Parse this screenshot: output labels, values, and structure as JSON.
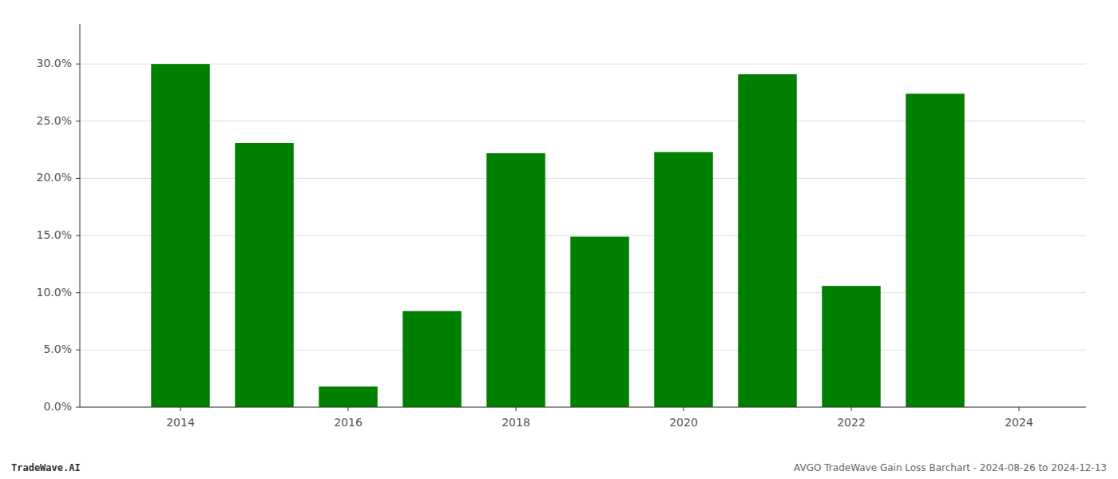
{
  "chart_data": {
    "type": "bar",
    "x": [
      2014,
      2015,
      2016,
      2017,
      2018,
      2019,
      2020,
      2021,
      2022,
      2023
    ],
    "values": [
      0.3,
      0.231,
      0.018,
      0.084,
      0.222,
      0.149,
      0.223,
      0.291,
      0.106,
      0.274
    ],
    "color": "#008000",
    "xlim": [
      2012.8,
      2024.8
    ],
    "xticks": [
      2014,
      2016,
      2018,
      2020,
      2022,
      2024
    ],
    "ylim": [
      0,
      0.335
    ],
    "yticks": [
      {
        "value": 0.0,
        "label": "0.0%"
      },
      {
        "value": 0.05,
        "label": "5.0%"
      },
      {
        "value": 0.1,
        "label": "10.0%"
      },
      {
        "value": 0.15,
        "label": "15.0%"
      },
      {
        "value": 0.2,
        "label": "20.0%"
      },
      {
        "value": 0.25,
        "label": "25.0%"
      },
      {
        "value": 0.3,
        "label": "30.0%"
      }
    ],
    "grid": true,
    "annotations": [
      "TradeWave.AI",
      "AVGO TradeWave Gain Loss Barchart - 2024-08-26 to 2024-12-13"
    ]
  }
}
